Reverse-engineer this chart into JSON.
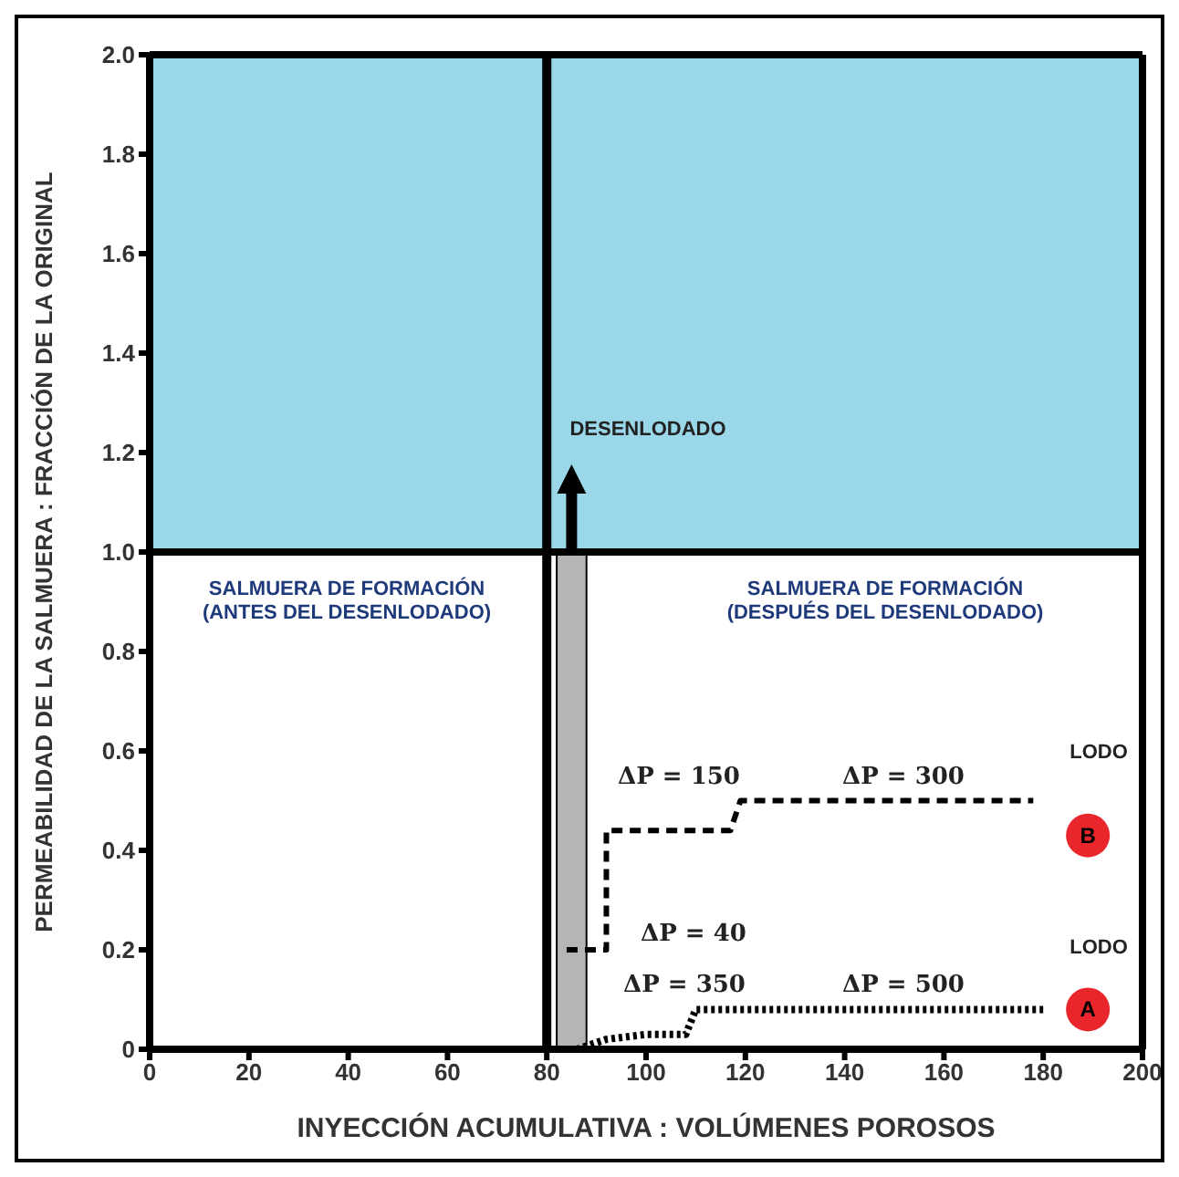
{
  "chart_data": {
    "type": "line",
    "xlabel": "INYECCIÓN ACUMULATIVA : VOLÚMENES POROSOS",
    "ylabel": "PERMEABILIDAD DE LA SALMUERA : FRACCIÓN DE LA ORIGINAL",
    "xlim": [
      0,
      200
    ],
    "xticks": [
      0,
      20,
      40,
      60,
      80,
      100,
      120,
      140,
      160,
      180,
      200
    ],
    "ylim": [
      0,
      2
    ],
    "yticks": [
      0,
      0.2,
      0.4,
      0.6,
      0.8,
      {
        "value": 1,
        "label": "1.0"
      },
      1.2,
      1.4,
      1.6,
      1.8,
      {
        "value": 2,
        "label": "2.0"
      }
    ],
    "grid": false,
    "legend": false,
    "series": [
      {
        "color": "#000000",
        "line_style": "dashed",
        "marker": "none",
        "x": [
          84,
          92,
          92,
          117,
          119,
          178
        ],
        "values": [
          0.2,
          0.2,
          0.44,
          0.44,
          0.5,
          0.5
        ]
      },
      {
        "color": "#000000",
        "line_style": "dotted",
        "marker": "none",
        "x": [
          86,
          92,
          100,
          108,
          110,
          180
        ],
        "values": [
          0,
          0.02,
          0.03,
          0.03,
          0.08,
          0.08
        ]
      },
      {
        "type": "scatter",
        "name": "B",
        "color": "#e8262b",
        "marker": "circle",
        "x": [
          189
        ],
        "values": [
          0.43
        ]
      },
      {
        "type": "scatter",
        "name": "A",
        "color": "#e8262b",
        "marker": "circle",
        "x": [
          189
        ],
        "values": [
          0.08
        ]
      }
    ],
    "bands": [
      {
        "axis": "x",
        "from": 82,
        "to": 88,
        "color": "#b5b5b5"
      },
      {
        "axis": "y",
        "from": 1,
        "to": 2,
        "color": "#9ad7e9"
      }
    ],
    "ref_lines": [
      {
        "axis": "x",
        "value": 80,
        "color": "#000000"
      },
      {
        "axis": "y",
        "value": 1,
        "color": "#000000"
      }
    ],
    "annotations": [
      "DESENLODADO",
      "SALMUERA DE FORMACIÓN\n(ANTES DEL DESENLODADO)",
      "SALMUERA DE FORMACIÓN\n(DESPUÉS DEL DESENLODADO)",
      "ΔP = 150",
      "ΔP = 300",
      "ΔP = 40",
      "ΔP = 350",
      "ΔP = 500",
      "LODO",
      "LODO"
    ]
  }
}
